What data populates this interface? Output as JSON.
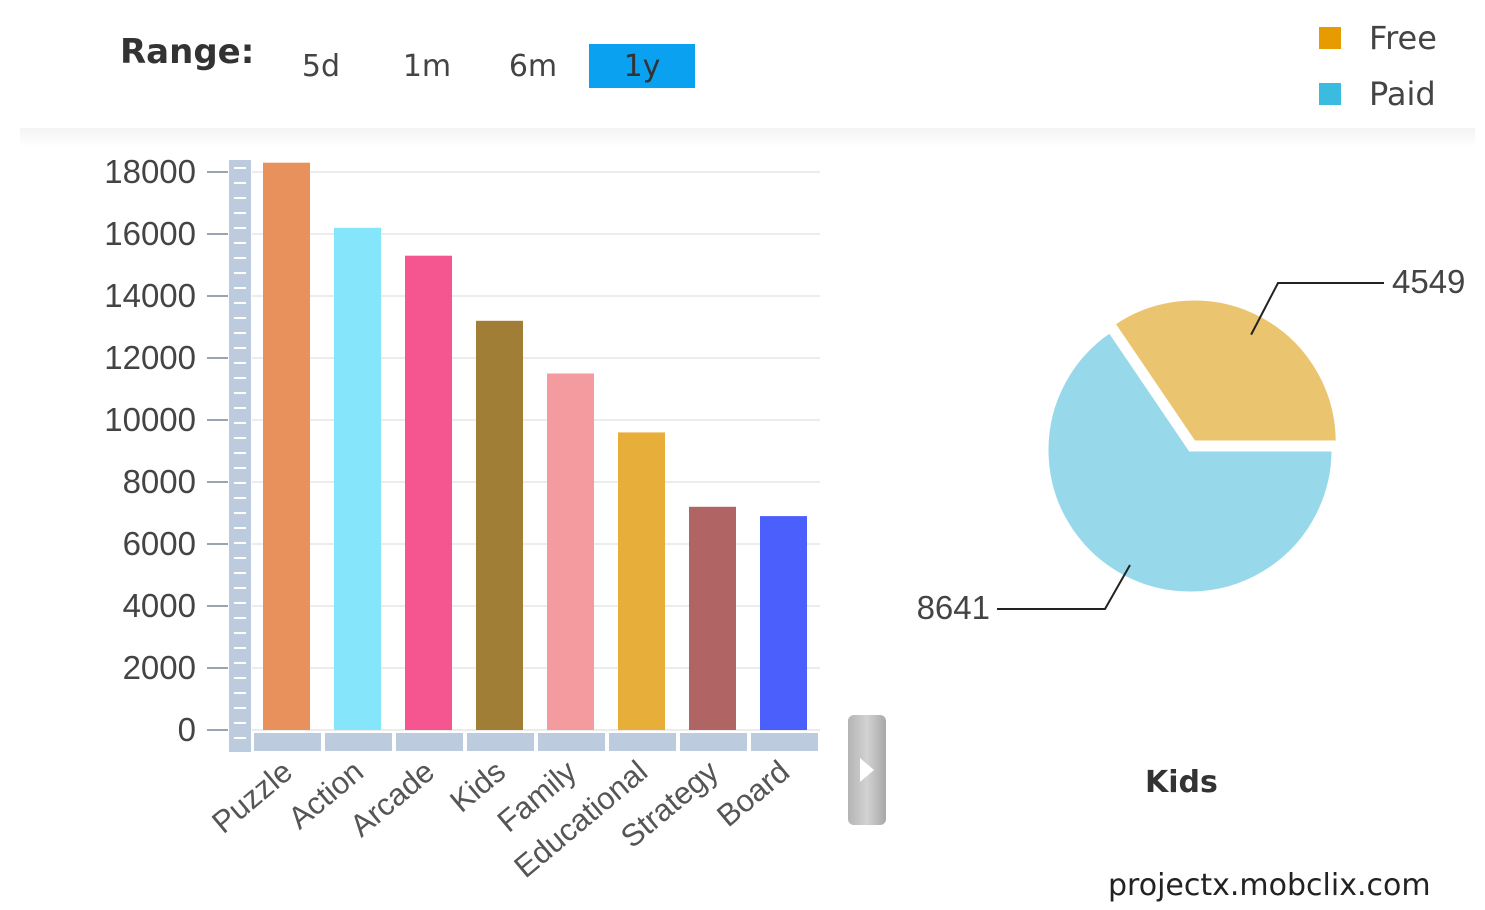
{
  "range": {
    "label": "Range:",
    "options": [
      "5d",
      "1m",
      "6m",
      "1y"
    ],
    "selected": "1y",
    "selected_color": "#0aa1f0"
  },
  "legend": [
    {
      "name": "Free",
      "color": "#e69c00"
    },
    {
      "name": "Paid",
      "color": "#3bbbe0"
    }
  ],
  "chart_data": [
    {
      "type": "bar",
      "categories": [
        "Puzzle",
        "Action",
        "Arcade",
        "Kids",
        "Family",
        "Educational",
        "Strategy",
        "Board"
      ],
      "values": [
        18300,
        16200,
        15300,
        13200,
        11500,
        9600,
        7200,
        6900
      ],
      "colors": [
        "#e8915c",
        "#85e5fb",
        "#f5568f",
        "#a07e36",
        "#f39b9e",
        "#e8ae3a",
        "#b06464",
        "#4a5ffc"
      ],
      "yticks": [
        0,
        2000,
        4000,
        6000,
        8000,
        10000,
        12000,
        14000,
        16000,
        18000
      ],
      "ylim": [
        0,
        18000
      ],
      "grid": true,
      "horizontal_scrollbar": true
    },
    {
      "type": "pie",
      "title": "Kids",
      "labels": [
        "Free",
        "Paid"
      ],
      "values": [
        4549,
        8641
      ],
      "colors": [
        "#ebc46f",
        "#97d8ea"
      ],
      "data_labels": [
        "4549",
        "8641"
      ],
      "exploded": "Free"
    }
  ],
  "watermark": "projectx.mobclix.com",
  "icons": {
    "scroll_handle": "chevron-right-icon"
  }
}
